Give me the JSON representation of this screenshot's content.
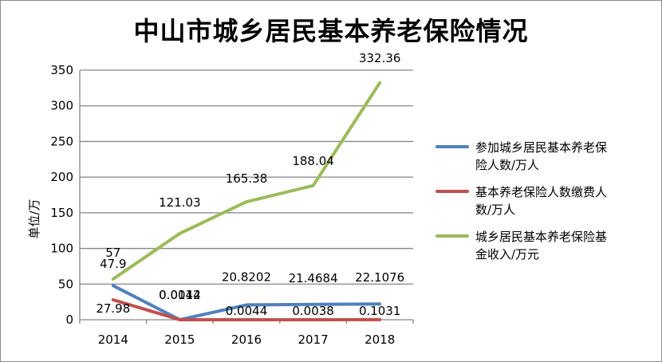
{
  "chart_data": {
    "type": "line",
    "title": "中山市城乡居民基本养老保险情况",
    "ylabel": "单位/万",
    "xlabel": "",
    "categories": [
      "2014",
      "2015",
      "2016",
      "2017",
      "2018"
    ],
    "ylim": [
      0,
      350
    ],
    "yticks": [
      0,
      50,
      100,
      150,
      200,
      250,
      300,
      350
    ],
    "grid": true,
    "legend_position": "right",
    "series": [
      {
        "name": "参加城乡居民基本养老保险人数/万人",
        "legend_lines": [
          "参加城乡居民基本养老保",
          "险人数/万人"
        ],
        "color": "#4f81bd",
        "values": [
          47.9,
          0.0142,
          20.8202,
          21.4684,
          22.1076
        ],
        "labels": [
          "47.9",
          "0.0142",
          "20.8202",
          "21.4684",
          "22.1076"
        ]
      },
      {
        "name": "基本养老保险人数缴费人数/万人",
        "legend_lines": [
          "基本养老保险人数缴费人",
          "数/万人"
        ],
        "color": "#c0504d",
        "values": [
          27.98,
          0.0014,
          0.0044,
          0.0038,
          0.1031
        ],
        "labels": [
          "27.98",
          "0.0014",
          "0.0044",
          "0.0038",
          "0.1031"
        ]
      },
      {
        "name": "城乡居民基本养老保险基金收入/万元",
        "legend_lines": [
          "城乡居民基本养老保险基",
          "金收入/万元"
        ],
        "color": "#9bbb59",
        "values": [
          57,
          121.03,
          165.38,
          188.04,
          332.36
        ],
        "labels": [
          "57",
          "121.03",
          "165.38",
          "188.04",
          "332.36"
        ]
      }
    ]
  }
}
